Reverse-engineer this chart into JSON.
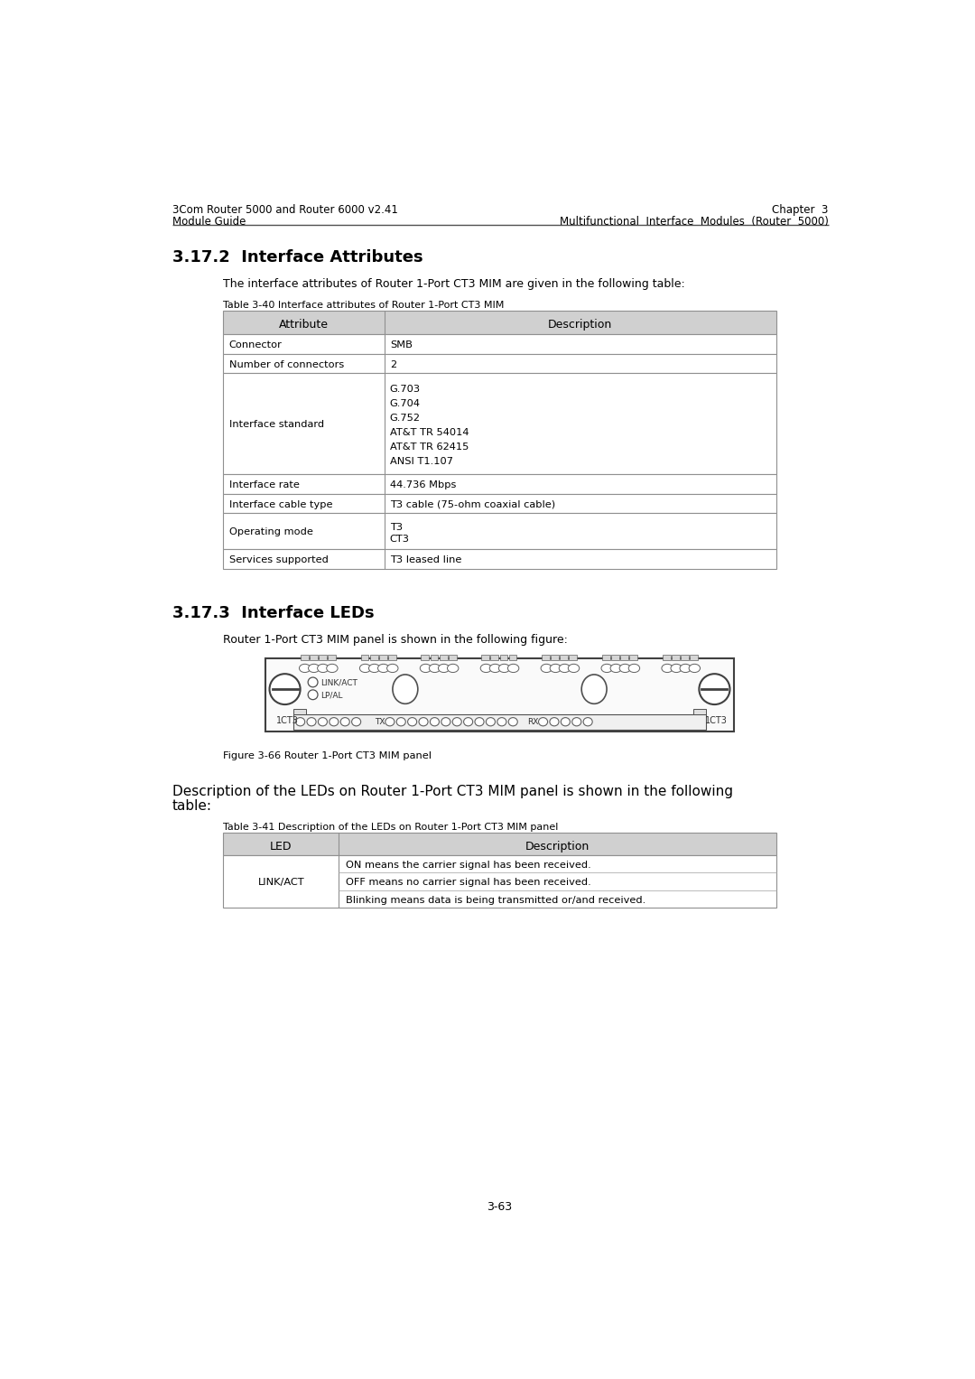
{
  "header_left_line1": "3Com Router 5000 and Router 6000 v2.41",
  "header_left_line2": "Module Guide",
  "header_right_line1": "Chapter  3",
  "header_right_line2": "Multifunctional  Interface  Modules  (Router  5000)",
  "section_title_1": "3.17.2  Interface Attributes",
  "intro_text_1": "The interface attributes of Router 1-Port CT3 MIM are given in the following table:",
  "table1_caption": "Table 3-40 Interface attributes of Router 1-Port CT3 MIM",
  "table1_header": [
    "Attribute",
    "Description"
  ],
  "table1_rows": [
    [
      "Connector",
      "SMB"
    ],
    [
      "Number of connectors",
      "2"
    ],
    [
      "Interface standard",
      "G.703\nG.704\nG.752\nAT&T TR 54014\nAT&T TR 62415\nANSI T1.107"
    ],
    [
      "Interface rate",
      "44.736 Mbps"
    ],
    [
      "Interface cable type",
      "T3 cable (75-ohm coaxial cable)"
    ],
    [
      "Operating mode",
      "T3\nCT3"
    ],
    [
      "Services supported",
      "T3 leased line"
    ]
  ],
  "section_title_2": "3.17.3  Interface LEDs",
  "intro_text_2": "Router 1-Port CT3 MIM panel is shown in the following figure:",
  "figure_caption": "Figure 3-66 Router 1-Port CT3 MIM panel",
  "description_text_line1": "Description of the LEDs on Router 1-Port CT3 MIM panel is shown in the following",
  "description_text_line2": "table:",
  "table2_caption": "Table 3-41 Description of the LEDs on Router 1-Port CT3 MIM panel",
  "table2_header": [
    "LED",
    "Description"
  ],
  "table2_rows_attr": [
    "LINK/ACT"
  ],
  "table2_rows_desc": [
    "ON means the carrier signal has been received.",
    "OFF means no carrier signal has been received.",
    "Blinking means data is being transmitted or/and received."
  ],
  "page_number": "3-63",
  "bg_color": "#ffffff",
  "table_header_bg": "#d0d0d0",
  "table_border_color": "#909090",
  "text_color": "#000000"
}
